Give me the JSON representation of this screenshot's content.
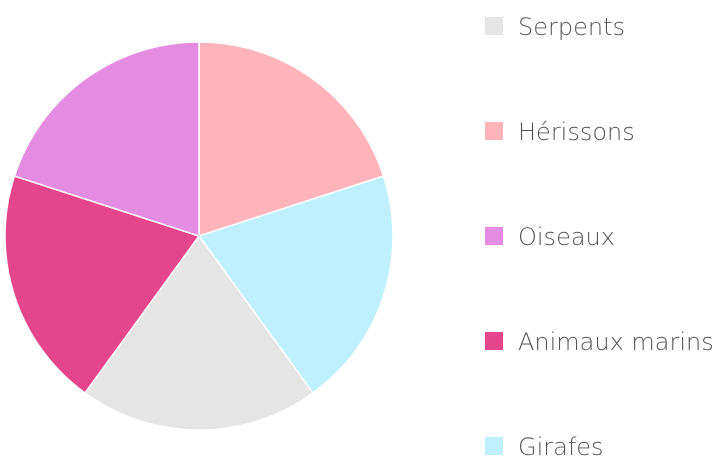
{
  "chart_data": {
    "type": "pie",
    "categories": [
      "Serpents",
      "Hérissons",
      "Oiseaux",
      "Animaux marins",
      "Girafes"
    ],
    "values": [
      20,
      20,
      20,
      20,
      20
    ],
    "colors": {
      "Hérissons": "#ffb3bb",
      "Girafes": "#bff0ff",
      "Serpents": "#e5e5e5",
      "Animaux marins": "#e5468b",
      "Oiseaux": "#e48be2"
    },
    "slice_order_clockwise_from_top": [
      "Hérissons",
      "Girafes",
      "Serpents",
      "Animaux marins",
      "Oiseaux"
    ],
    "title": "",
    "legend_position": "right"
  }
}
